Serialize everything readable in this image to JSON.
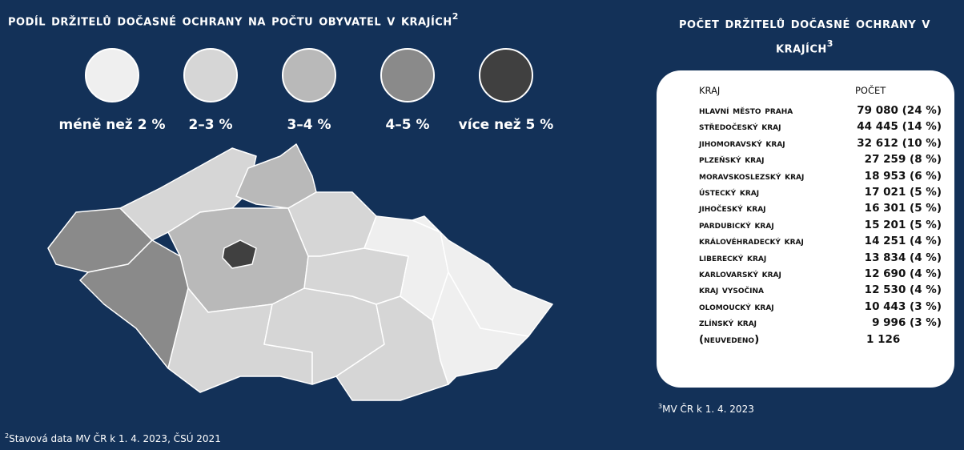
{
  "left": {
    "title": "Podíl držitelů dočasné ochrany na počtu obyvatel v krajích",
    "title_note": "2",
    "legend": [
      {
        "label": "méně než 2 %",
        "color": "#efefef"
      },
      {
        "label": "2–3 %",
        "color": "#d6d6d6"
      },
      {
        "label": "3–4 %",
        "color": "#b9b9b9"
      },
      {
        "label": "4–5 %",
        "color": "#8a8a8a"
      },
      {
        "label": "více než 5 %",
        "color": "#404040"
      }
    ],
    "footnote_mark": "2",
    "footnote": "Stavová data MV ČR k 1. 4. 2023, ČSÚ 2021"
  },
  "right": {
    "title": "Počet držitelů dočasné ochrany v krajích",
    "title_note": "3",
    "table": {
      "headers": [
        "Kraj",
        "Počet"
      ],
      "rows": [
        [
          "Hlavní město Praha",
          "79 080 (24 %)"
        ],
        [
          "Středočeský kraj",
          "44 445 (14 %)"
        ],
        [
          "Jihomoravský kraj",
          "32 612 (10 %)"
        ],
        [
          "Plzeňský kraj",
          "27 259 (8 %)"
        ],
        [
          "Moravskoslezský kraj",
          "18 953 (6 %)"
        ],
        [
          "Ústecký kraj",
          "17 021 (5 %)"
        ],
        [
          "Jihočeský kraj",
          "16 301 (5 %)"
        ],
        [
          "Pardubický kraj",
          "15 201 (5 %)"
        ],
        [
          "Královéhradecký kraj",
          "14 251 (4 %)"
        ],
        [
          "Liberecký kraj",
          "13 834 (4 %)"
        ],
        [
          "Karlovarský kraj",
          "12 690 (4 %)"
        ],
        [
          "Kraj Vysočina",
          "12 530 (4 %)"
        ],
        [
          "Olomoucký kraj",
          "10 443 (3 %)"
        ],
        [
          "Zlínský kraj",
          "9 996 (3 %)"
        ],
        [
          "(neuvedeno)",
          "1 126"
        ]
      ]
    },
    "footnote_mark": "3",
    "footnote": "MV ČR k 1. 4. 2023"
  }
}
